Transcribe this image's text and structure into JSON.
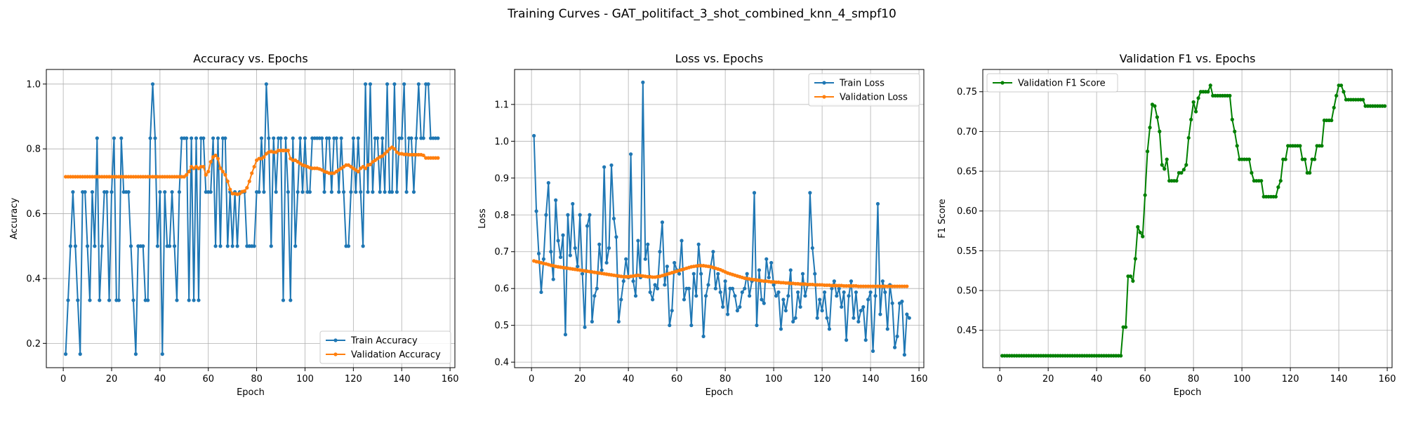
{
  "figure": {
    "title": "Training Curves - GAT_politifact_3_shot_combined_knn_4_smpf10"
  },
  "colors": {
    "train": "#1f77b4",
    "validation": "#ff7f0e",
    "f1": "#008000",
    "grid": "#b0b0b0"
  },
  "chart_data": [
    {
      "type": "line",
      "title": "Accuracy vs. Epochs",
      "xlabel": "Epoch",
      "ylabel": "Accuracy",
      "xlim": [
        -7,
        162
      ],
      "ylim": [
        0.125,
        1.045
      ],
      "xticks": [
        0,
        20,
        40,
        60,
        80,
        100,
        120,
        140,
        160
      ],
      "yticks": [
        0.2,
        0.4,
        0.6,
        0.8,
        1.0
      ],
      "ytick_labels": [
        "0.2",
        "0.4",
        "0.6",
        "0.8",
        "1.0"
      ],
      "grid": true,
      "legend_position": "lower-right",
      "series": [
        {
          "name": "Train Accuracy",
          "color": "#1f77b4",
          "x_start": 1,
          "values": [
            0.167,
            0.333,
            0.5,
            0.667,
            0.5,
            0.333,
            0.167,
            0.667,
            0.667,
            0.5,
            0.333,
            0.667,
            0.5,
            0.833,
            0.333,
            0.5,
            0.667,
            0.667,
            0.333,
            0.667,
            0.833,
            0.333,
            0.333,
            0.833,
            0.667,
            0.667,
            0.667,
            0.5,
            0.333,
            0.167,
            0.5,
            0.5,
            0.5,
            0.333,
            0.333,
            0.833,
            1.0,
            0.833,
            0.5,
            0.667,
            0.167,
            0.667,
            0.5,
            0.5,
            0.667,
            0.5,
            0.333,
            0.667,
            0.833,
            0.833,
            0.833,
            0.333,
            0.833,
            0.333,
            0.833,
            0.333,
            0.833,
            0.833,
            0.667,
            0.667,
            0.667,
            0.833,
            0.5,
            0.833,
            0.5,
            0.833,
            0.833,
            0.5,
            0.667,
            0.5,
            0.667,
            0.5,
            0.667,
            0.667,
            0.667,
            0.5,
            0.5,
            0.5,
            0.5,
            0.667,
            0.667,
            0.833,
            0.667,
            1.0,
            0.833,
            0.5,
            0.833,
            0.667,
            0.833,
            0.833,
            0.333,
            0.833,
            0.667,
            0.333,
            0.833,
            0.5,
            0.667,
            0.833,
            0.667,
            0.833,
            0.667,
            0.667,
            0.833,
            0.833,
            0.833,
            0.833,
            0.833,
            0.667,
            0.833,
            0.833,
            0.667,
            0.833,
            0.833,
            0.667,
            0.833,
            0.667,
            0.5,
            0.5,
            0.667,
            0.833,
            0.667,
            0.833,
            0.667,
            0.5,
            1.0,
            0.667,
            1.0,
            0.667,
            0.833,
            0.833,
            0.667,
            0.833,
            0.667,
            1.0,
            0.667,
            0.667,
            1.0,
            0.667,
            0.833,
            0.833,
            1.0,
            0.667,
            0.833,
            0.833,
            0.667,
            0.833,
            1.0,
            0.833,
            0.833,
            1.0,
            1.0,
            0.833,
            0.833,
            0.833,
            0.833
          ]
        },
        {
          "name": "Validation Accuracy",
          "color": "#ff7f0e",
          "x_start": 1,
          "values": [
            0.714,
            0.714,
            0.714,
            0.714,
            0.714,
            0.714,
            0.714,
            0.714,
            0.714,
            0.714,
            0.714,
            0.714,
            0.714,
            0.714,
            0.714,
            0.714,
            0.714,
            0.714,
            0.714,
            0.714,
            0.714,
            0.714,
            0.714,
            0.714,
            0.714,
            0.714,
            0.714,
            0.714,
            0.714,
            0.714,
            0.714,
            0.714,
            0.714,
            0.714,
            0.714,
            0.714,
            0.714,
            0.714,
            0.714,
            0.714,
            0.714,
            0.714,
            0.714,
            0.714,
            0.714,
            0.714,
            0.714,
            0.714,
            0.714,
            0.714,
            0.72,
            0.73,
            0.745,
            0.74,
            0.745,
            0.74,
            0.745,
            0.745,
            0.72,
            0.73,
            0.76,
            0.775,
            0.78,
            0.77,
            0.74,
            0.73,
            0.72,
            0.7,
            0.675,
            0.662,
            0.662,
            0.66,
            0.662,
            0.668,
            0.67,
            0.68,
            0.7,
            0.725,
            0.745,
            0.765,
            0.77,
            0.77,
            0.775,
            0.785,
            0.79,
            0.792,
            0.79,
            0.79,
            0.795,
            0.795,
            0.795,
            0.795,
            0.795,
            0.77,
            0.765,
            0.765,
            0.76,
            0.755,
            0.75,
            0.748,
            0.745,
            0.742,
            0.74,
            0.74,
            0.74,
            0.738,
            0.735,
            0.73,
            0.728,
            0.725,
            0.725,
            0.725,
            0.73,
            0.735,
            0.74,
            0.745,
            0.75,
            0.75,
            0.745,
            0.74,
            0.735,
            0.73,
            0.74,
            0.745,
            0.74,
            0.75,
            0.752,
            0.76,
            0.765,
            0.77,
            0.775,
            0.778,
            0.785,
            0.792,
            0.8,
            0.805,
            0.8,
            0.79,
            0.785,
            0.785,
            0.783,
            0.783,
            0.782,
            0.782,
            0.782,
            0.782,
            0.782,
            0.782,
            0.78,
            0.772,
            0.772,
            0.772,
            0.772,
            0.772,
            0.772
          ]
        }
      ]
    },
    {
      "type": "line",
      "title": "Loss vs. Epochs",
      "xlabel": "Epoch",
      "ylabel": "Loss",
      "xlim": [
        -7,
        162
      ],
      "ylim": [
        0.385,
        1.195
      ],
      "xticks": [
        0,
        20,
        40,
        60,
        80,
        100,
        120,
        140,
        160
      ],
      "yticks": [
        0.4,
        0.5,
        0.6,
        0.7,
        0.8,
        0.9,
        1.0,
        1.1
      ],
      "ytick_labels": [
        "0.4",
        "0.5",
        "0.6",
        "0.7",
        "0.8",
        "0.9",
        "1.0",
        "1.1"
      ],
      "grid": true,
      "legend_position": "upper-right",
      "series": [
        {
          "name": "Train Loss",
          "color": "#1f77b4",
          "x_start": 1,
          "values": [
            1.015,
            0.81,
            0.695,
            0.59,
            0.68,
            0.8,
            0.887,
            0.7,
            0.625,
            0.84,
            0.73,
            0.685,
            0.745,
            0.475,
            0.8,
            0.69,
            0.83,
            0.71,
            0.66,
            0.8,
            0.64,
            0.495,
            0.77,
            0.8,
            0.51,
            0.58,
            0.6,
            0.72,
            0.65,
            0.93,
            0.67,
            0.71,
            0.935,
            0.79,
            0.74,
            0.51,
            0.57,
            0.62,
            0.68,
            0.63,
            0.965,
            0.62,
            0.58,
            0.73,
            0.63,
            1.16,
            0.68,
            0.72,
            0.59,
            0.57,
            0.61,
            0.6,
            0.7,
            0.78,
            0.61,
            0.66,
            0.5,
            0.54,
            0.67,
            0.65,
            0.64,
            0.73,
            0.57,
            0.6,
            0.6,
            0.5,
            0.64,
            0.58,
            0.72,
            0.64,
            0.47,
            0.58,
            0.61,
            0.66,
            0.7,
            0.6,
            0.64,
            0.59,
            0.55,
            0.62,
            0.53,
            0.6,
            0.6,
            0.58,
            0.54,
            0.55,
            0.59,
            0.6,
            0.64,
            0.58,
            0.62,
            0.86,
            0.5,
            0.65,
            0.57,
            0.56,
            0.68,
            0.63,
            0.67,
            0.61,
            0.58,
            0.59,
            0.49,
            0.57,
            0.54,
            0.58,
            0.65,
            0.51,
            0.52,
            0.59,
            0.55,
            0.64,
            0.58,
            0.61,
            0.86,
            0.71,
            0.64,
            0.52,
            0.57,
            0.54,
            0.59,
            0.52,
            0.49,
            0.6,
            0.62,
            0.58,
            0.6,
            0.55,
            0.59,
            0.46,
            0.58,
            0.62,
            0.52,
            0.59,
            0.51,
            0.54,
            0.55,
            0.46,
            0.57,
            0.59,
            0.43,
            0.58,
            0.83,
            0.53,
            0.62,
            0.59,
            0.49,
            0.61,
            0.56,
            0.44,
            0.47,
            0.56,
            0.565,
            0.42,
            0.53,
            0.52
          ]
        },
        {
          "name": "Validation Loss",
          "color": "#ff7f0e",
          "x_start": 1,
          "values": [
            0.675,
            0.673,
            0.672,
            0.67,
            0.668,
            0.667,
            0.665,
            0.663,
            0.662,
            0.66,
            0.659,
            0.658,
            0.657,
            0.656,
            0.655,
            0.654,
            0.653,
            0.652,
            0.651,
            0.65,
            0.649,
            0.648,
            0.647,
            0.646,
            0.645,
            0.644,
            0.643,
            0.642,
            0.641,
            0.64,
            0.639,
            0.638,
            0.637,
            0.636,
            0.635,
            0.634,
            0.633,
            0.632,
            0.632,
            0.632,
            0.633,
            0.634,
            0.635,
            0.636,
            0.635,
            0.634,
            0.633,
            0.632,
            0.632,
            0.631,
            0.631,
            0.632,
            0.633,
            0.635,
            0.637,
            0.639,
            0.641,
            0.643,
            0.645,
            0.647,
            0.649,
            0.651,
            0.653,
            0.655,
            0.657,
            0.659,
            0.66,
            0.661,
            0.662,
            0.662,
            0.662,
            0.661,
            0.66,
            0.659,
            0.657,
            0.655,
            0.653,
            0.651,
            0.648,
            0.645,
            0.642,
            0.64,
            0.638,
            0.636,
            0.634,
            0.632,
            0.63,
            0.628,
            0.627,
            0.626,
            0.625,
            0.624,
            0.623,
            0.622,
            0.621,
            0.62,
            0.62,
            0.619,
            0.618,
            0.618,
            0.617,
            0.617,
            0.616,
            0.616,
            0.615,
            0.615,
            0.614,
            0.614,
            0.613,
            0.613,
            0.612,
            0.612,
            0.612,
            0.611,
            0.611,
            0.611,
            0.61,
            0.61,
            0.61,
            0.61,
            0.609,
            0.609,
            0.609,
            0.608,
            0.608,
            0.608,
            0.608,
            0.608,
            0.607,
            0.607,
            0.607,
            0.607,
            0.607,
            0.607,
            0.606,
            0.606,
            0.606,
            0.606,
            0.606,
            0.606,
            0.606,
            0.606,
            0.606,
            0.606,
            0.606,
            0.606,
            0.606,
            0.606,
            0.606,
            0.606,
            0.606,
            0.606,
            0.606,
            0.606,
            0.606
          ]
        }
      ]
    },
    {
      "type": "line",
      "title": "Validation F1 vs. Epochs",
      "xlabel": "Epoch",
      "ylabel": "F1 Score",
      "xlim": [
        -7,
        162
      ],
      "ylim": [
        0.403,
        0.778
      ],
      "xticks": [
        0,
        20,
        40,
        60,
        80,
        100,
        120,
        140,
        160
      ],
      "yticks": [
        0.45,
        0.5,
        0.55,
        0.6,
        0.65,
        0.7,
        0.75
      ],
      "ytick_labels": [
        "0.45",
        "0.50",
        "0.55",
        "0.60",
        "0.65",
        "0.70",
        "0.75"
      ],
      "grid": true,
      "legend_position": "upper-left",
      "series": [
        {
          "name": "Validation F1 Score",
          "color": "#008000",
          "x_start": 1,
          "values": [
            0.418,
            0.418,
            0.418,
            0.418,
            0.418,
            0.418,
            0.418,
            0.418,
            0.418,
            0.418,
            0.418,
            0.418,
            0.418,
            0.418,
            0.418,
            0.418,
            0.418,
            0.418,
            0.418,
            0.418,
            0.418,
            0.418,
            0.418,
            0.418,
            0.418,
            0.418,
            0.418,
            0.418,
            0.418,
            0.418,
            0.418,
            0.418,
            0.418,
            0.418,
            0.418,
            0.418,
            0.418,
            0.418,
            0.418,
            0.418,
            0.418,
            0.418,
            0.418,
            0.418,
            0.418,
            0.418,
            0.418,
            0.418,
            0.418,
            0.418,
            0.454,
            0.454,
            0.518,
            0.518,
            0.512,
            0.54,
            0.58,
            0.573,
            0.568,
            0.62,
            0.675,
            0.705,
            0.734,
            0.732,
            0.718,
            0.7,
            0.658,
            0.653,
            0.665,
            0.638,
            0.638,
            0.638,
            0.638,
            0.648,
            0.648,
            0.652,
            0.658,
            0.692,
            0.715,
            0.737,
            0.725,
            0.742,
            0.75,
            0.75,
            0.75,
            0.75,
            0.758,
            0.745,
            0.745,
            0.745,
            0.745,
            0.745,
            0.745,
            0.745,
            0.745,
            0.715,
            0.7,
            0.682,
            0.665,
            0.665,
            0.665,
            0.665,
            0.665,
            0.648,
            0.638,
            0.638,
            0.638,
            0.638,
            0.618,
            0.618,
            0.618,
            0.618,
            0.618,
            0.618,
            0.63,
            0.638,
            0.665,
            0.665,
            0.682,
            0.682,
            0.682,
            0.682,
            0.682,
            0.682,
            0.665,
            0.665,
            0.648,
            0.648,
            0.665,
            0.665,
            0.682,
            0.682,
            0.682,
            0.714,
            0.714,
            0.714,
            0.714,
            0.73,
            0.745,
            0.758,
            0.758,
            0.75,
            0.74,
            0.74,
            0.74,
            0.74,
            0.74,
            0.74,
            0.74,
            0.74,
            0.732,
            0.732,
            0.732,
            0.732,
            0.732,
            0.732,
            0.732,
            0.732,
            0.732
          ]
        }
      ]
    }
  ]
}
